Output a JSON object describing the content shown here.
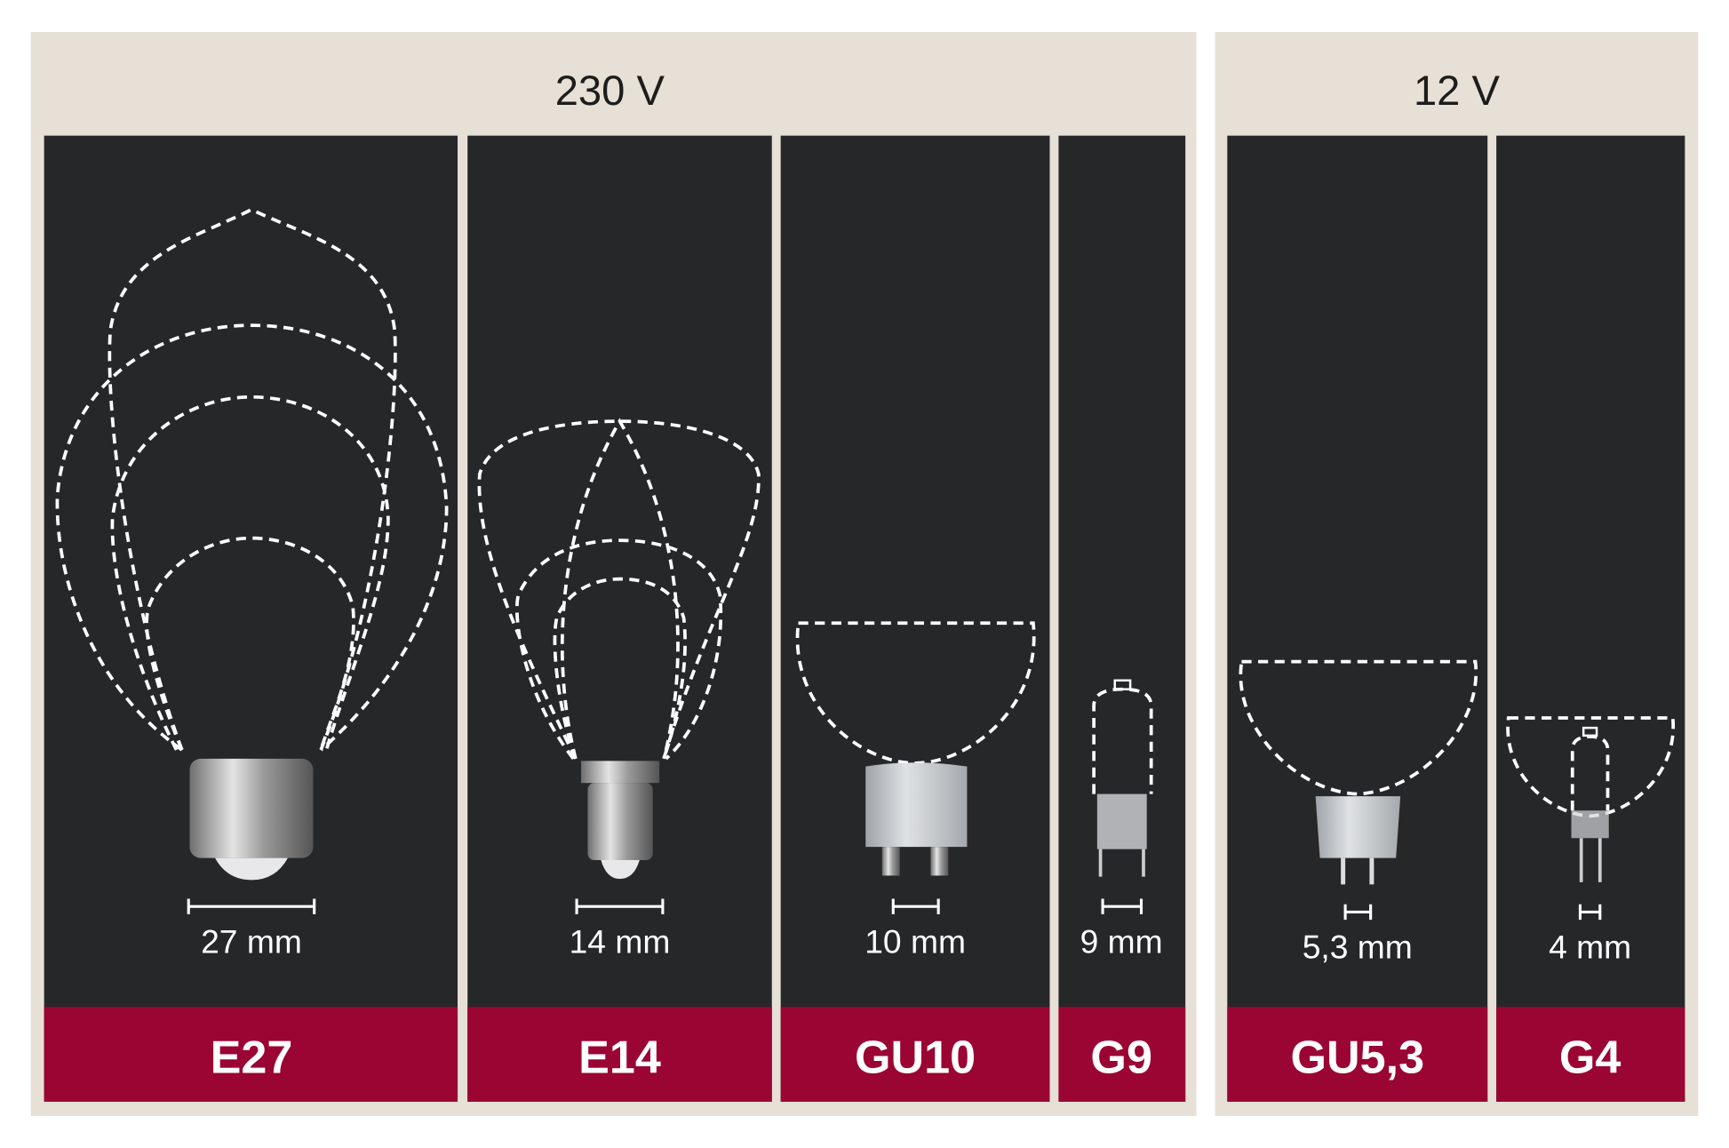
{
  "groups": [
    {
      "voltage": "230 V",
      "sockets": [
        {
          "name": "E27",
          "size": "27 mm"
        },
        {
          "name": "E14",
          "size": "14 mm"
        },
        {
          "name": "GU10",
          "size": "10 mm"
        },
        {
          "name": "G9",
          "size": "9 mm"
        }
      ]
    },
    {
      "voltage": "12 V",
      "sockets": [
        {
          "name": "GU5,3",
          "size": "5,3 mm"
        },
        {
          "name": "G4",
          "size": "4 mm"
        }
      ]
    }
  ],
  "colors": {
    "background": "#e6e0d6",
    "panel": "#262729",
    "accent": "#9b0533"
  }
}
